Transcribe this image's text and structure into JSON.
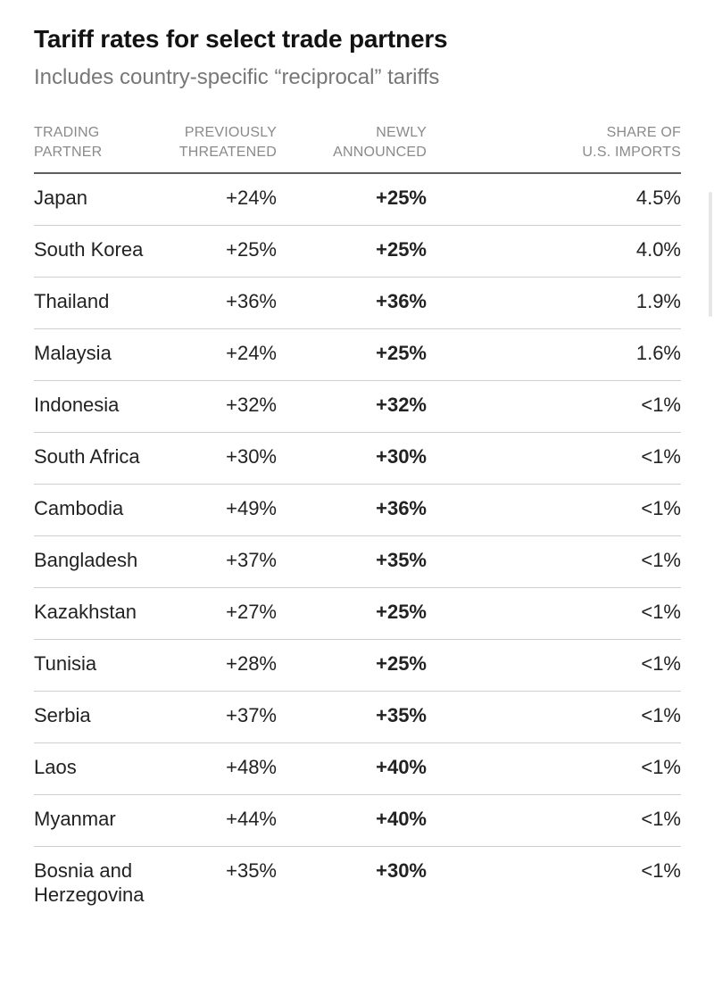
{
  "title": "Tariff rates for select trade partners",
  "subtitle": "Includes country-specific “reciprocal” tariffs",
  "colors": {
    "highlight": "#d0021b",
    "header_text": "#8a8a8a",
    "rule": "#5e5e5e"
  },
  "chart_data": {
    "type": "table",
    "columns": [
      {
        "line1": "TRADING",
        "line2": "PARTNER"
      },
      {
        "line1": "PREVIOUSLY",
        "line2": "THREATENED"
      },
      {
        "line1": "NEWLY",
        "line2": "ANNOUNCED"
      },
      {
        "line1": "SHARE OF",
        "line2": "U.S. IMPORTS"
      }
    ],
    "rows": [
      {
        "partner": "Japan",
        "previously": "+24%",
        "newly": "+25%",
        "share": "4.5%"
      },
      {
        "partner": "South Korea",
        "previously": "+25%",
        "newly": "+25%",
        "share": "4.0%"
      },
      {
        "partner": "Thailand",
        "previously": "+36%",
        "newly": "+36%",
        "share": "1.9%"
      },
      {
        "partner": "Malaysia",
        "previously": "+24%",
        "newly": "+25%",
        "share": "1.6%"
      },
      {
        "partner": "Indonesia",
        "previously": "+32%",
        "newly": "+32%",
        "share": "<1%"
      },
      {
        "partner": "South Africa",
        "previously": "+30%",
        "newly": "+30%",
        "share": "<1%"
      },
      {
        "partner": "Cambodia",
        "previously": "+49%",
        "newly": "+36%",
        "share": "<1%"
      },
      {
        "partner": "Bangladesh",
        "previously": "+37%",
        "newly": "+35%",
        "share": "<1%"
      },
      {
        "partner": "Kazakhstan",
        "previously": "+27%",
        "newly": "+25%",
        "share": "<1%"
      },
      {
        "partner": "Tunisia",
        "previously": "+28%",
        "newly": "+25%",
        "share": "<1%"
      },
      {
        "partner": "Serbia",
        "previously": "+37%",
        "newly": "+35%",
        "share": "<1%"
      },
      {
        "partner": "Laos",
        "previously": "+48%",
        "newly": "+40%",
        "share": "<1%"
      },
      {
        "partner": "Myanmar",
        "previously": "+44%",
        "newly": "+40%",
        "share": "<1%"
      },
      {
        "partner": "Bosnia and Herzegovina",
        "previously": "+35%",
        "newly": "+30%",
        "share": "<1%"
      }
    ]
  }
}
